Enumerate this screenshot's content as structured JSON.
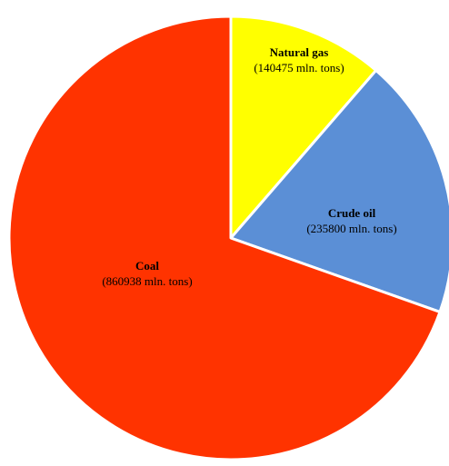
{
  "chart_data": {
    "type": "pie",
    "title": "",
    "slices": [
      {
        "name": "Natural gas",
        "value": 140475,
        "label": "(140475 mln. tons)",
        "color": "#ffff00"
      },
      {
        "name": "Crude oil",
        "value": 235800,
        "label": "(235800 mln. tons)",
        "color": "#5b8fd6"
      },
      {
        "name": "Coal",
        "value": 860938,
        "label": "(860938 mln. tons)",
        "color": "#ff3300"
      }
    ],
    "start_angle_deg": 0,
    "direction": "clockwise",
    "slice_separator_color": "#ffffff"
  }
}
